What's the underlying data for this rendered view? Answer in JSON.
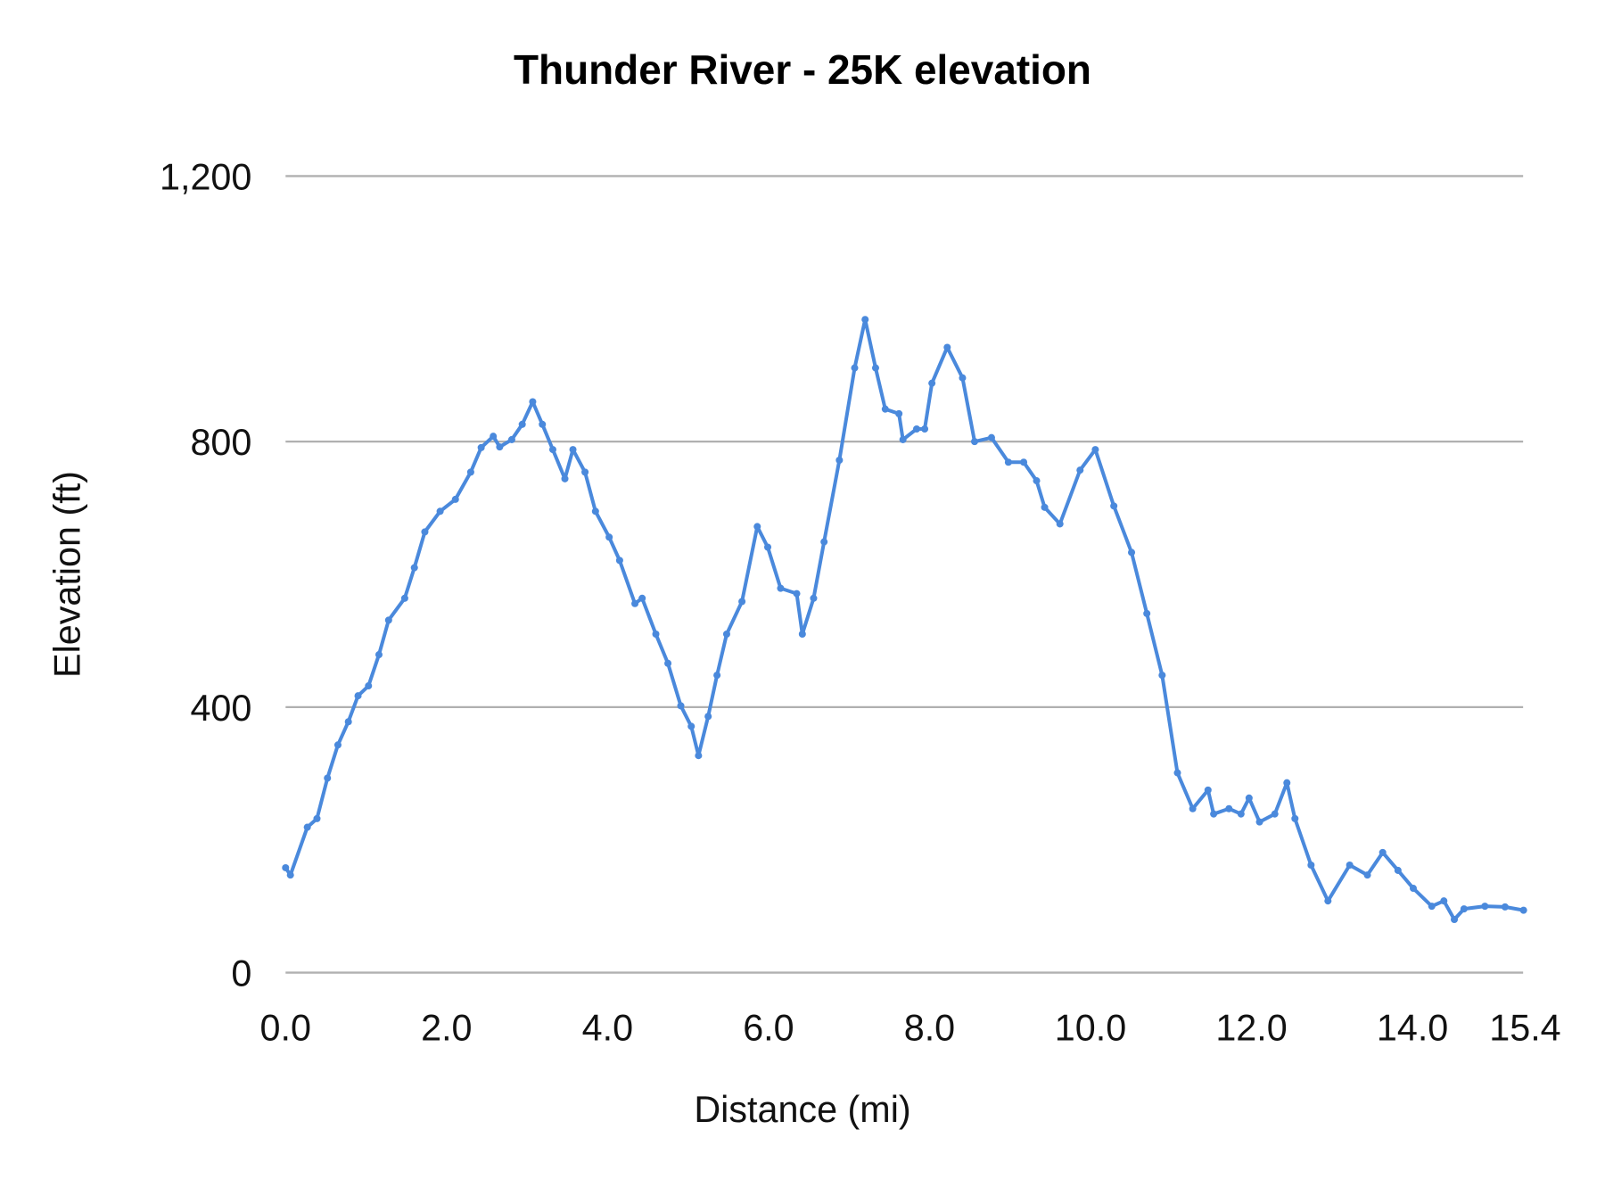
{
  "chart_data": {
    "type": "line",
    "title": "Thunder River - 25K elevation",
    "xlabel": "Distance (mi)",
    "ylabel": "Elevation (ft)",
    "xlim": [
      0,
      15.4
    ],
    "ylim": [
      0,
      1200
    ],
    "x_ticks": [
      "0.0",
      "2.0",
      "4.0",
      "6.0",
      "8.0",
      "10.0",
      "12.0",
      "14.0",
      "15.4"
    ],
    "x_tick_values": [
      0,
      2,
      4,
      6,
      8,
      10,
      12,
      14,
      15.4
    ],
    "y_ticks": [
      "0",
      "400",
      "800",
      "1,200"
    ],
    "y_tick_values": [
      0,
      400,
      800,
      1200
    ],
    "grid": "horizontal",
    "legend": "none",
    "series": [
      {
        "color": "#4a89dc",
        "markers": true,
        "x": [
          0,
          0.06,
          0.27,
          0.39,
          0.52,
          0.65,
          0.78,
          0.9,
          1.03,
          1.16,
          1.28,
          1.48,
          1.6,
          1.73,
          1.92,
          2.11,
          2.3,
          2.43,
          2.58,
          2.66,
          2.81,
          2.94,
          3.07,
          3.19,
          3.32,
          3.47,
          3.57,
          3.72,
          3.85,
          4.02,
          4.15,
          4.34,
          4.43,
          4.6,
          4.75,
          4.91,
          5.04,
          5.13,
          5.25,
          5.36,
          5.48,
          5.67,
          5.86,
          5.99,
          6.15,
          6.35,
          6.42,
          6.56,
          6.69,
          6.88,
          7.07,
          7.2,
          7.33,
          7.45,
          7.62,
          7.67,
          7.84,
          7.94,
          8.03,
          8.22,
          8.41,
          8.56,
          8.77,
          8.98,
          9.17,
          9.33,
          9.43,
          9.62,
          9.87,
          10.06,
          10.29,
          10.51,
          10.7,
          10.89,
          11.08,
          11.27,
          11.46,
          11.53,
          11.72,
          11.87,
          11.97,
          12.1,
          12.29,
          12.44,
          12.54,
          12.74,
          12.95,
          13.22,
          13.44,
          13.63,
          13.82,
          14.01,
          14.24,
          14.39,
          14.52,
          14.64,
          14.9,
          15.15,
          15.38
        ],
        "y": [
          158,
          147,
          219,
          232,
          293,
          343,
          378,
          417,
          432,
          479,
          531,
          564,
          610,
          664,
          695,
          713,
          754,
          791,
          808,
          792,
          803,
          826,
          860,
          826,
          788,
          744,
          788,
          754,
          695,
          656,
          621,
          556,
          564,
          510,
          466,
          402,
          371,
          327,
          386,
          448,
          510,
          559,
          672,
          641,
          579,
          571,
          510,
          564,
          649,
          772,
          911,
          984,
          911,
          849,
          842,
          803,
          819,
          819,
          888,
          942,
          896,
          800,
          806,
          769,
          769,
          741,
          701,
          676,
          757,
          788,
          703,
          633,
          541,
          448,
          301,
          247,
          275,
          239,
          247,
          239,
          263,
          227,
          239,
          286,
          232,
          162,
          108,
          162,
          147,
          181,
          154,
          127,
          100,
          108,
          80,
          96,
          100,
          99,
          94
        ]
      }
    ]
  }
}
